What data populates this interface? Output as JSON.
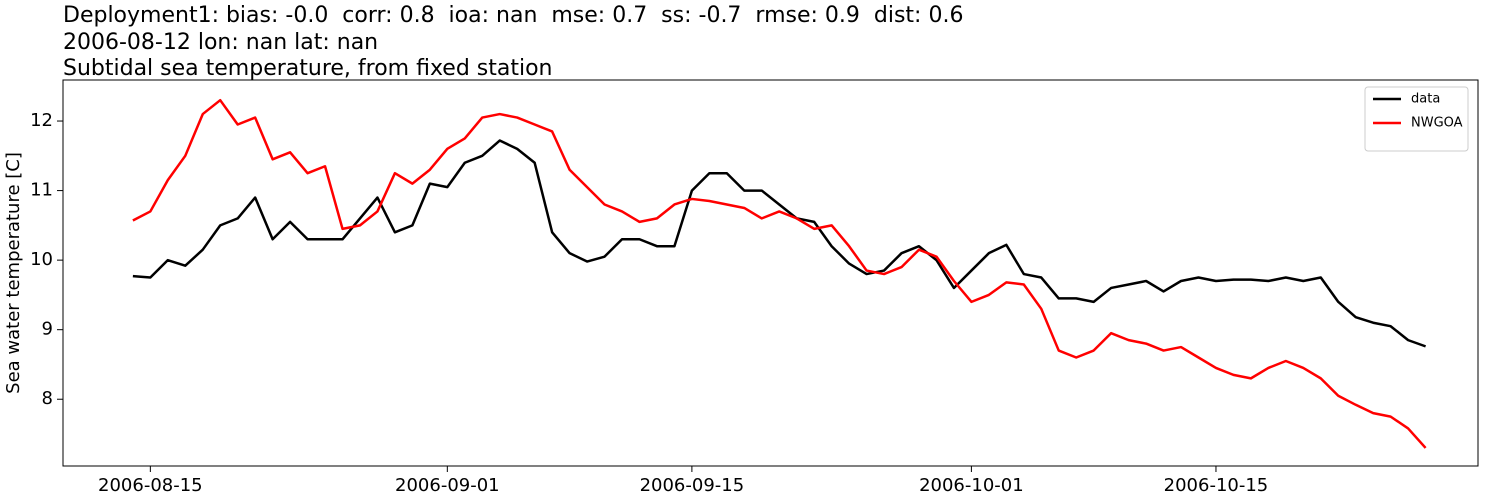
{
  "chart_data": {
    "type": "line",
    "title_lines": [
      "Deployment1: bias: -0.0  corr: 0.8  ioa: nan  mse: 0.7  ss: -0.7  rmse: 0.9  dist: 0.6",
      "2006-08-12 lon: nan lat: nan",
      "Subtidal sea temperature, from fixed station"
    ],
    "y_label": "Sea water temperature [C]",
    "x": [
      "2006-08-14",
      "2006-08-15",
      "2006-08-16",
      "2006-08-17",
      "2006-08-18",
      "2006-08-19",
      "2006-08-20",
      "2006-08-21",
      "2006-08-22",
      "2006-08-23",
      "2006-08-24",
      "2006-08-25",
      "2006-08-26",
      "2006-08-27",
      "2006-08-28",
      "2006-08-29",
      "2006-08-30",
      "2006-08-31",
      "2006-09-01",
      "2006-09-02",
      "2006-09-03",
      "2006-09-04",
      "2006-09-05",
      "2006-09-06",
      "2006-09-07",
      "2006-09-08",
      "2006-09-09",
      "2006-09-10",
      "2006-09-11",
      "2006-09-12",
      "2006-09-13",
      "2006-09-14",
      "2006-09-15",
      "2006-09-16",
      "2006-09-17",
      "2006-09-18",
      "2006-09-19",
      "2006-09-20",
      "2006-09-21",
      "2006-09-22",
      "2006-09-23",
      "2006-09-24",
      "2006-09-25",
      "2006-09-26",
      "2006-09-27",
      "2006-09-28",
      "2006-09-29",
      "2006-09-30",
      "2006-10-01",
      "2006-10-02",
      "2006-10-03",
      "2006-10-04",
      "2006-10-05",
      "2006-10-06",
      "2006-10-07",
      "2006-10-08",
      "2006-10-09",
      "2006-10-10",
      "2006-10-11",
      "2006-10-12",
      "2006-10-13",
      "2006-10-14",
      "2006-10-15",
      "2006-10-16",
      "2006-10-17",
      "2006-10-18",
      "2006-10-19",
      "2006-10-20",
      "2006-10-21",
      "2006-10-22",
      "2006-10-23",
      "2006-10-24",
      "2006-10-25",
      "2006-10-26",
      "2006-10-27"
    ],
    "series": [
      {
        "name": "data",
        "color": "#000000",
        "values": [
          9.77,
          9.75,
          10.0,
          9.92,
          10.15,
          10.5,
          10.6,
          10.9,
          10.3,
          10.55,
          10.3,
          10.3,
          10.3,
          10.6,
          10.9,
          10.4,
          10.5,
          11.1,
          11.05,
          11.4,
          11.5,
          11.72,
          11.6,
          11.4,
          10.4,
          10.1,
          9.98,
          10.05,
          10.3,
          10.3,
          10.2,
          10.2,
          11.0,
          11.25,
          11.25,
          11.0,
          11.0,
          10.8,
          10.6,
          10.55,
          10.2,
          9.95,
          9.8,
          9.85,
          10.1,
          10.2,
          10.0,
          9.6,
          9.85,
          10.1,
          10.22,
          9.8,
          9.75,
          9.45,
          9.45,
          9.4,
          9.6,
          9.65,
          9.7,
          9.55,
          9.7,
          9.75,
          9.7,
          9.72,
          9.72,
          9.7,
          9.75,
          9.7,
          9.75,
          9.4,
          9.18,
          9.1,
          9.05,
          8.85,
          8.76
        ]
      },
      {
        "name": "NWGOA",
        "color": "#ff0000",
        "values": [
          10.57,
          10.7,
          11.15,
          11.5,
          12.1,
          12.3,
          11.95,
          12.05,
          11.45,
          11.55,
          11.25,
          11.35,
          10.45,
          10.5,
          10.7,
          11.25,
          11.1,
          11.3,
          11.6,
          11.75,
          12.05,
          12.1,
          12.05,
          11.95,
          11.85,
          11.3,
          11.05,
          10.8,
          10.7,
          10.55,
          10.6,
          10.8,
          10.88,
          10.85,
          10.8,
          10.75,
          10.6,
          10.7,
          10.6,
          10.45,
          10.5,
          10.2,
          9.85,
          9.8,
          9.9,
          10.15,
          10.05,
          9.7,
          9.4,
          9.5,
          9.68,
          9.65,
          9.3,
          8.7,
          8.6,
          8.7,
          8.95,
          8.85,
          8.8,
          8.7,
          8.75,
          8.6,
          8.45,
          8.35,
          8.3,
          8.45,
          8.55,
          8.45,
          8.3,
          8.05,
          7.92,
          7.8,
          7.75,
          7.58,
          7.3
        ]
      }
    ],
    "xlim": [
      "2006-08-10",
      "2006-10-30"
    ],
    "xticks": [
      "2006-08-15",
      "2006-09-01",
      "2006-09-15",
      "2006-10-01",
      "2006-10-15"
    ],
    "ylim": [
      7.04,
      12.59
    ],
    "yticks": [
      8,
      9,
      10,
      11,
      12
    ],
    "grid": false,
    "legend": "upper right"
  }
}
